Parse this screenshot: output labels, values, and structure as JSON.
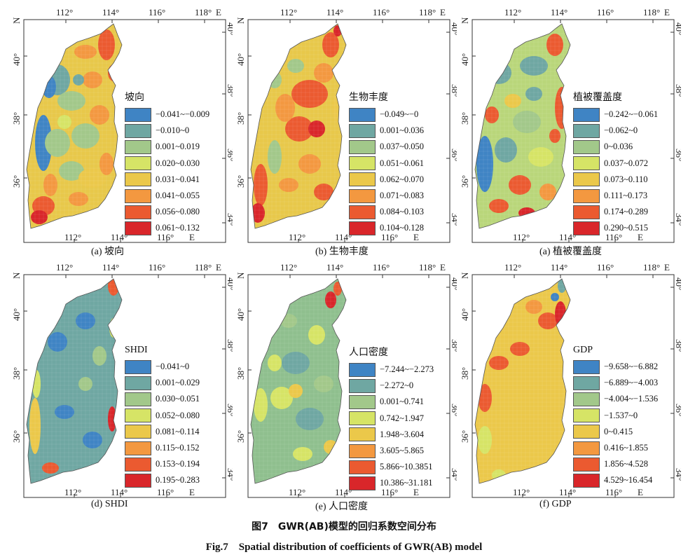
{
  "panels": [
    {
      "id": "a",
      "caption": "(a) 坡向",
      "legend_title": "坡向",
      "base_color": "#e8c84a",
      "classes": [
        {
          "label": "−0.041~−0.009",
          "color": "#3f84c4"
        },
        {
          "label": "−0.010~0",
          "color": "#6fa7a2"
        },
        {
          "label": "0.001~0.019",
          "color": "#a2c88a"
        },
        {
          "label": "0.020~0.030",
          "color": "#d6e466"
        },
        {
          "label": "0.031~0.041",
          "color": "#ebc84a"
        },
        {
          "label": "0.041~0.055",
          "color": "#f39840"
        },
        {
          "label": "0.056~0.080",
          "color": "#eb5a30"
        },
        {
          "label": "0.061~0.132",
          "color": "#d9262a"
        }
      ]
    },
    {
      "id": "b",
      "caption": "(b) 生物丰度",
      "legend_title": "生物丰度",
      "base_color": "#e8c84a",
      "classes": [
        {
          "label": "−0.049~−0",
          "color": "#3f84c4"
        },
        {
          "label": "0.001~0.036",
          "color": "#6fa7a2"
        },
        {
          "label": "0.037~0.050",
          "color": "#a2c88a"
        },
        {
          "label": "0.051~0.061",
          "color": "#d6e466"
        },
        {
          "label": "0.062~0.070",
          "color": "#ebc84a"
        },
        {
          "label": "0.071~0.083",
          "color": "#f39840"
        },
        {
          "label": "0.084~0.103",
          "color": "#eb5a30"
        },
        {
          "label": "0.104~0.128",
          "color": "#d9262a"
        }
      ]
    },
    {
      "id": "c",
      "caption": "(a) 植被覆盖度",
      "legend_title": "植被覆盖度",
      "base_color": "#b9d67a",
      "classes": [
        {
          "label": "−0.242~−0.061",
          "color": "#3f84c4"
        },
        {
          "label": "−0.062~0",
          "color": "#6fa7a2"
        },
        {
          "label": "0~0.036",
          "color": "#a2c88a"
        },
        {
          "label": "0.037~0.072",
          "color": "#d6e466"
        },
        {
          "label": "0.073~0.110",
          "color": "#ebc84a"
        },
        {
          "label": "0.111~0.173",
          "color": "#f39840"
        },
        {
          "label": "0.174~0.289",
          "color": "#eb5a30"
        },
        {
          "label": "0.290~0.515",
          "color": "#d9262a"
        }
      ]
    },
    {
      "id": "d",
      "caption": "(d) SHDI",
      "legend_title": "SHDI",
      "base_color": "#6fa7a2",
      "classes": [
        {
          "label": "−0.041~0",
          "color": "#3f84c4"
        },
        {
          "label": "0.001~0.029",
          "color": "#6fa7a2"
        },
        {
          "label": "0.030~0.051",
          "color": "#a2c88a"
        },
        {
          "label": "0.052~0.080",
          "color": "#d6e466"
        },
        {
          "label": "0.081~0.114",
          "color": "#ebc84a"
        },
        {
          "label": "0.115~0.152",
          "color": "#f39840"
        },
        {
          "label": "0.153~0.194",
          "color": "#eb5a30"
        },
        {
          "label": "0.195~0.283",
          "color": "#d9262a"
        }
      ]
    },
    {
      "id": "e",
      "caption": "(e) 人口密度",
      "legend_title": "人口密度",
      "base_color": "#8fbf8e",
      "classes": [
        {
          "label": "−7.244~−2.273",
          "color": "#3f84c4"
        },
        {
          "label": "−2.272~0",
          "color": "#6fa7a2"
        },
        {
          "label": "0.001~0.741",
          "color": "#a2c88a"
        },
        {
          "label": "0.742~1.947",
          "color": "#d6e466"
        },
        {
          "label": "1.948~3.604",
          "color": "#ebc84a"
        },
        {
          "label": "3.605~5.865",
          "color": "#f39840"
        },
        {
          "label": "5.866~10.3851",
          "color": "#eb5a30"
        },
        {
          "label": "10.386~31.181",
          "color": "#d9262a"
        }
      ]
    },
    {
      "id": "f",
      "caption": "(f) GDP",
      "legend_title": "GDP",
      "base_color": "#ebc84a",
      "classes": [
        {
          "label": "−9.658~−6.882",
          "color": "#3f84c4"
        },
        {
          "label": "−6.889~−4.003",
          "color": "#6fa7a2"
        },
        {
          "label": "−4.004~−1.536",
          "color": "#a2c88a"
        },
        {
          "label": "−1.537~0",
          "color": "#d6e466"
        },
        {
          "label": "0~0.415",
          "color": "#ebc84a"
        },
        {
          "label": "0.416~1.855",
          "color": "#f39840"
        },
        {
          "label": "1.856~4.528",
          "color": "#eb5a30"
        },
        {
          "label": "4.529~16.454",
          "color": "#d9262a"
        }
      ]
    }
  ],
  "axes": {
    "top_ticks": [
      "112°",
      "114°",
      "116°",
      "118°"
    ],
    "top_dir": "E",
    "bottom_ticks": [
      "112°",
      "114°",
      "116°"
    ],
    "bottom_dir": "E",
    "left_ticks": [
      "40°",
      "38°",
      "36°"
    ],
    "left_dir": "N",
    "right_ticks": [
      "40°",
      "38°",
      "36°",
      "34°"
    ]
  },
  "figure": {
    "caption_cn": "图7　GWR(AB)模型的回归系数空间分布",
    "caption_en": "Fig.7　Spatial distribution of coefficients of GWR(AB) model"
  }
}
